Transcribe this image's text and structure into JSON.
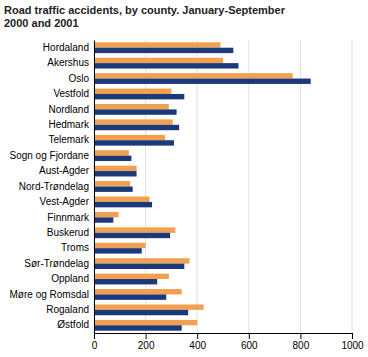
{
  "chart_data": {
    "type": "bar",
    "orientation": "horizontal",
    "title": "Road traffic accidents, by county. January-September\n2000 and 2001",
    "categories": [
      "Hordaland",
      "Akershus",
      "Oslo",
      "Vestfold",
      "Nordland",
      "Hedmark",
      "Telemark",
      "Sogn og Fjordane",
      "Aust-Agder",
      "Nord-Trøndelag",
      "Vest-Agder",
      "Finnmark",
      "Buskerud",
      "Troms",
      "Sør-Trøndelag",
      "Oppland",
      "Møre og Romsdal",
      "Rogaland",
      "Østfold"
    ],
    "series": [
      {
        "color": "#f0a050",
        "values": [
          490,
          500,
          770,
          300,
          290,
          305,
          275,
          135,
          165,
          140,
          215,
          95,
          315,
          200,
          370,
          290,
          340,
          425,
          400
        ]
      },
      {
        "color": "#1a3a7a",
        "values": [
          540,
          560,
          840,
          350,
          320,
          330,
          310,
          145,
          165,
          150,
          225,
          75,
          295,
          185,
          350,
          245,
          280,
          365,
          340
        ]
      }
    ],
    "xlim": [
      0,
      1000
    ],
    "xticks": [
      0,
      200,
      400,
      600,
      800,
      1000
    ],
    "grid": true
  }
}
